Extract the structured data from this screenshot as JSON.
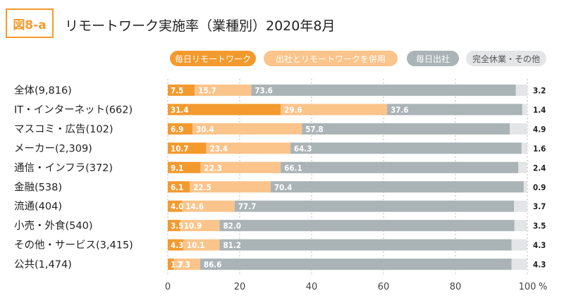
{
  "figure": {
    "badge": "図8-a",
    "title": "リモートワーク実施率（業種別）2020年8月"
  },
  "colors": {
    "series": [
      "#f39a2e",
      "#fbc48b",
      "#aab3b6",
      "#e3e5e6"
    ],
    "badge": "#f39a2e"
  },
  "chart_data": {
    "type": "bar",
    "orientation": "horizontal",
    "stacked": true,
    "title": "リモートワーク実施率（業種別）2020年8月",
    "categories": [
      "全体(9,816)",
      "IT・インターネット(662)",
      "マスコミ・広告(102)",
      "メーカー(2,309)",
      "通信・インフラ(372)",
      "金融(538)",
      "流通(404)",
      "小売・外食(540)",
      "その他・サービス(3,415)",
      "公共(1,474)"
    ],
    "series": [
      {
        "name": "毎日リモートワーク",
        "values": [
          7.5,
          31.4,
          6.9,
          10.7,
          9.1,
          6.1,
          4.0,
          3.5,
          4.3,
          1.7
        ]
      },
      {
        "name": "出社とリモートワークを併用",
        "values": [
          15.7,
          29.6,
          30.4,
          23.4,
          22.3,
          22.5,
          14.6,
          10.9,
          10.1,
          7.3
        ]
      },
      {
        "name": "毎日出社",
        "values": [
          73.6,
          37.6,
          57.8,
          64.3,
          66.1,
          70.4,
          77.7,
          82.0,
          81.2,
          86.6
        ]
      },
      {
        "name": "完全休業・その他",
        "values": [
          3.2,
          1.4,
          4.9,
          1.6,
          2.4,
          0.9,
          3.7,
          3.5,
          4.3,
          4.3
        ]
      }
    ],
    "labels": [
      [
        "7.5",
        "15.7",
        "73.6",
        "3.2"
      ],
      [
        "31.4",
        "29.6",
        "37.6",
        "1.4"
      ],
      [
        "6.9",
        "30.4",
        "57.8",
        "4.9"
      ],
      [
        "10.7",
        "23.4",
        "64.3",
        "1.6"
      ],
      [
        "9.1",
        "22.3",
        "66.1",
        "2.4"
      ],
      [
        "6.1",
        "22.5",
        "70.4",
        "0.9"
      ],
      [
        "4.0",
        "14.6",
        "77.7",
        "3.7"
      ],
      [
        "3.5",
        "10.9",
        "82.0",
        "3.5"
      ],
      [
        "4.3",
        "10.1",
        "81.2",
        "4.3"
      ],
      [
        "1.7",
        "7.3",
        "86.6",
        "4.3"
      ]
    ],
    "xlim": [
      0,
      100
    ],
    "xticks": [
      "0",
      "20",
      "40",
      "60",
      "80",
      "100"
    ],
    "xunit": "%",
    "legend_position": "top-right"
  }
}
